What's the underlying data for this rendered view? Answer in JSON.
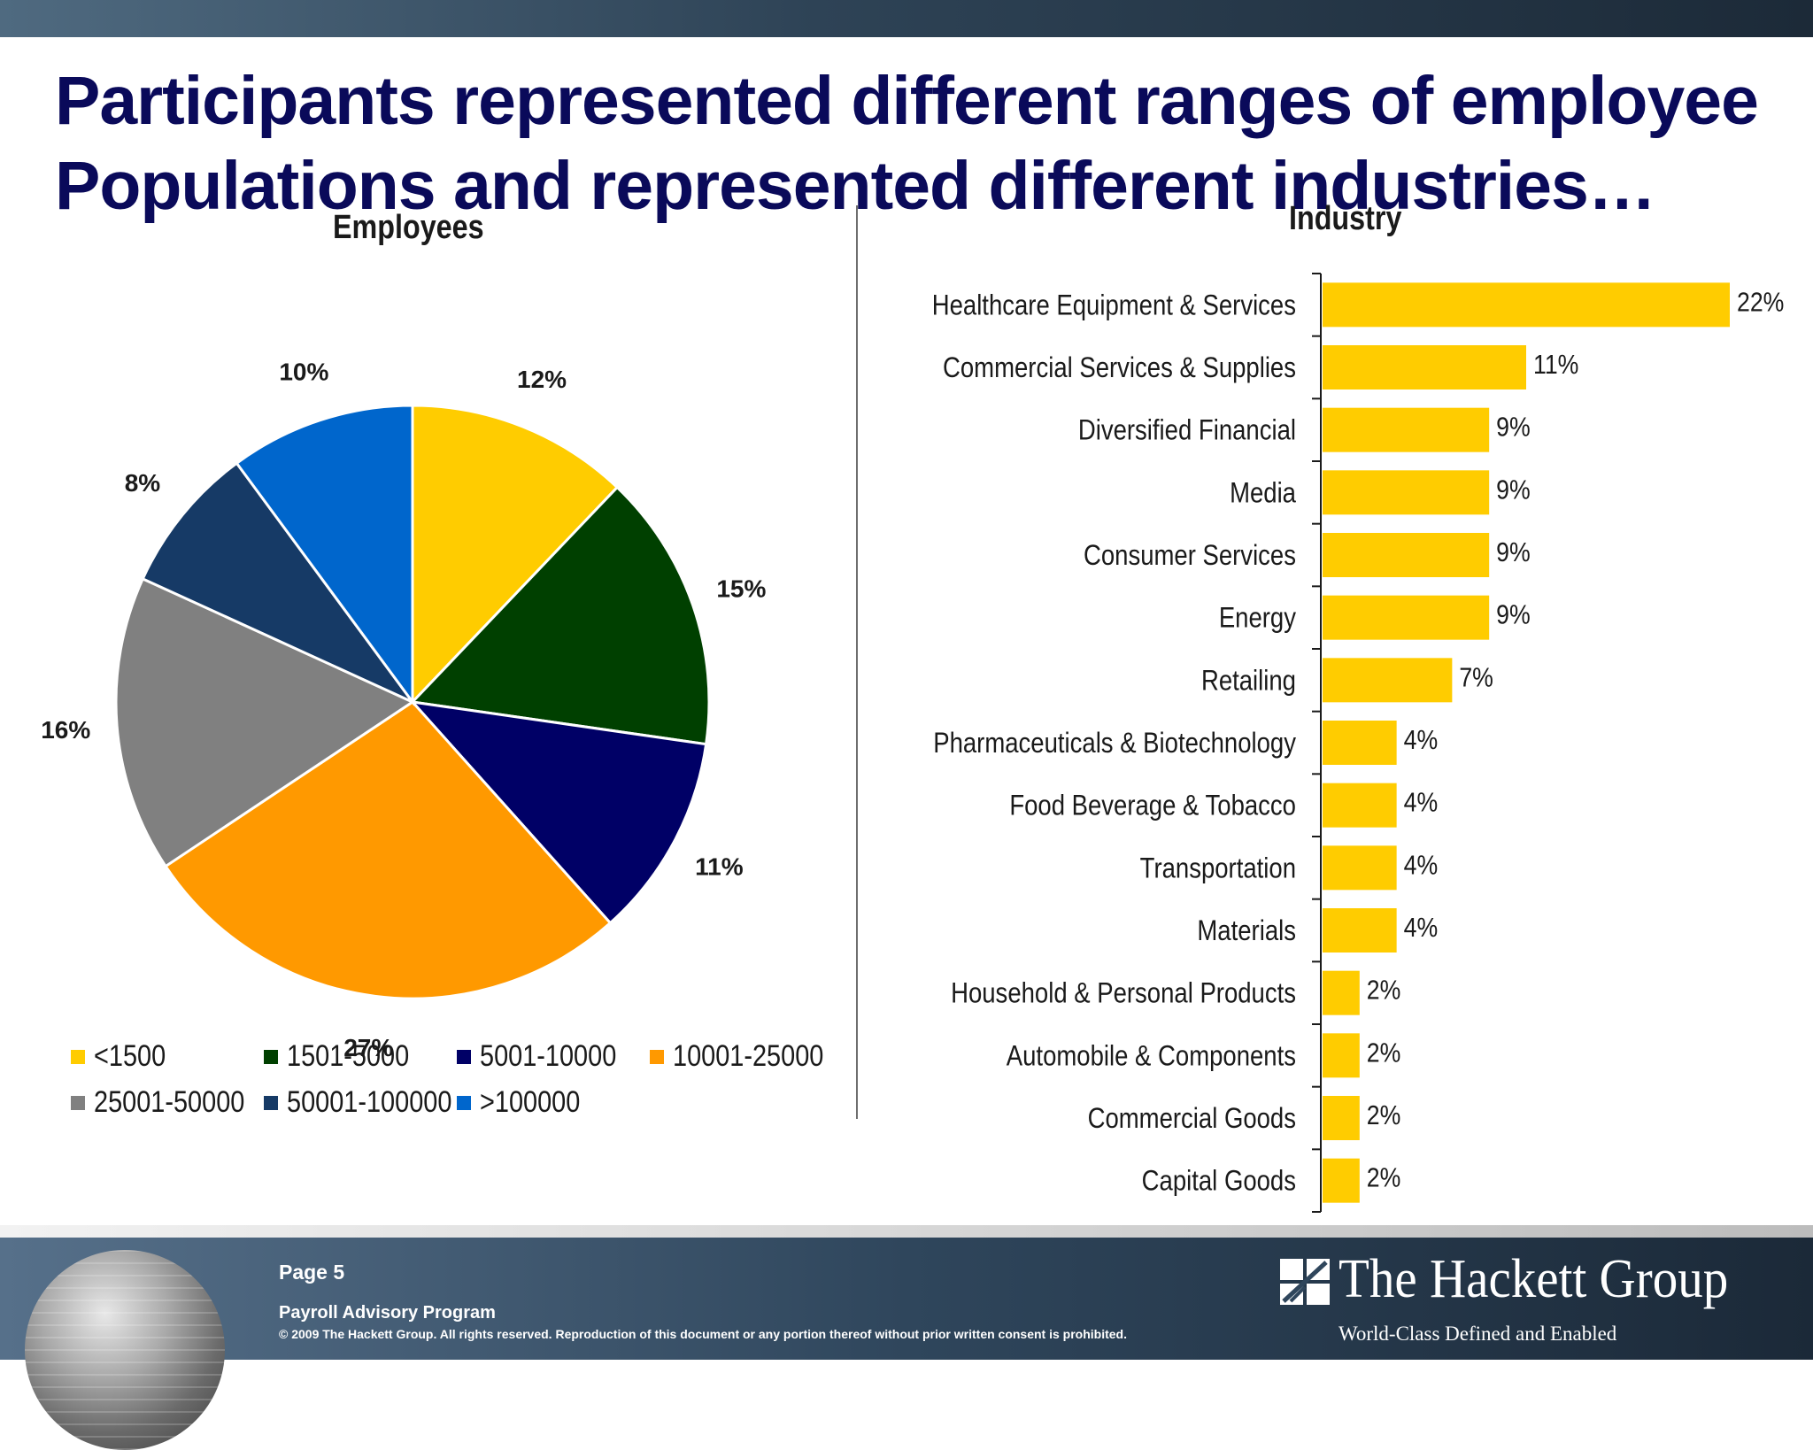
{
  "slide": {
    "title_line1": "Participants represented different ranges of employee",
    "title_line2": "Populations and represented different industries…"
  },
  "footer": {
    "page": "Page 5",
    "program": "Payroll Advisory Program",
    "copyright": "© 2009 The Hackett Group.  All rights reserved. Reproduction of this document or any portion thereof without prior written consent is prohibited.",
    "logo_name": "The Hackett Group",
    "logo_tagline": "World-Class Defined and Enabled"
  },
  "chart_data": [
    {
      "type": "pie",
      "title": "Employees",
      "categories": [
        "<1500",
        "1501-5000",
        "5001-10000",
        "10001-25000",
        "25001-50000",
        "50001-100000",
        ">100000"
      ],
      "values": [
        12,
        15,
        11,
        27,
        16,
        8,
        10
      ],
      "labels": [
        "12%",
        "15%",
        "11%",
        "27%",
        "16%",
        "8%",
        "10%"
      ],
      "colors": [
        "#FFCC00",
        "#004000",
        "#000066",
        "#FF9900",
        "#808080",
        "#163A66",
        "#0066CC"
      ],
      "legend_position": "bottom"
    },
    {
      "type": "bar",
      "orientation": "horizontal",
      "title": "Industry",
      "categories": [
        "Healthcare Equipment & Services",
        "Commercial Services & Supplies",
        "Diversified Financial",
        "Media",
        "Consumer Services",
        "Energy",
        "Retailing",
        "Pharmaceuticals & Biotechnology",
        "Food Beverage & Tobacco",
        "Transportation",
        "Materials",
        "Household & Personal Products",
        "Automobile & Components",
        "Commercial Goods",
        "Capital Goods"
      ],
      "values": [
        22,
        11,
        9,
        9,
        9,
        9,
        7,
        4,
        4,
        4,
        4,
        2,
        2,
        2,
        2
      ],
      "labels": [
        "22%",
        "11%",
        "9%",
        "9%",
        "9%",
        "9%",
        "7%",
        "4%",
        "4%",
        "4%",
        "4%",
        "2%",
        "2%",
        "2%",
        "2%"
      ],
      "color": "#FFCC00",
      "xlim": [
        0,
        22
      ]
    }
  ]
}
